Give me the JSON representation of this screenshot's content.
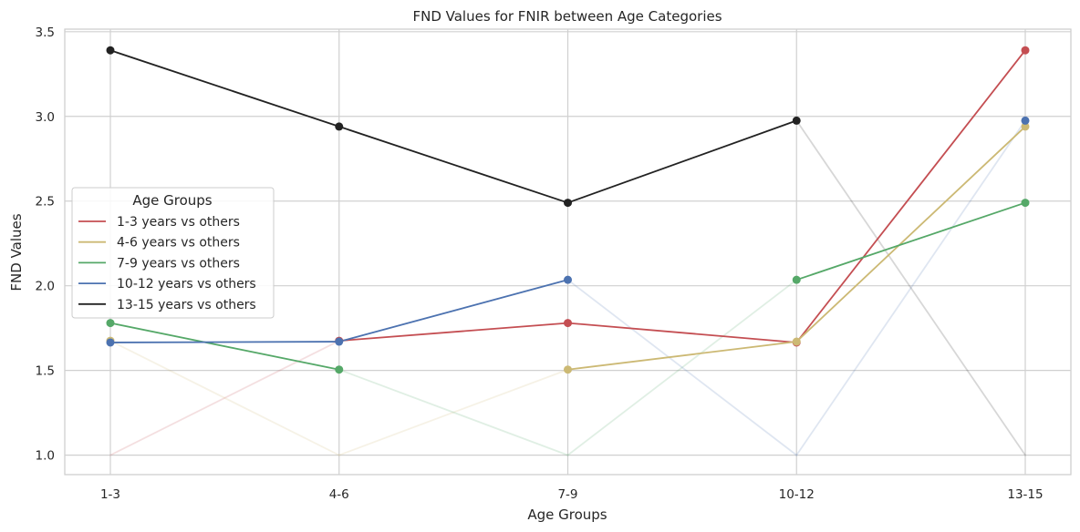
{
  "chart_data": {
    "type": "line",
    "title": "FND Values for FNIR between Age Categories",
    "xlabel": "Age Groups",
    "ylabel": "FND Values",
    "categories": [
      "1-3",
      "4-6",
      "7-9",
      "10-12",
      "13-15"
    ],
    "ylim": [
      0.885,
      3.515
    ],
    "yticks": [
      "1.0",
      "1.5",
      "2.0",
      "2.5",
      "3.0",
      "3.5"
    ],
    "grid": true,
    "legend": {
      "title": "Age Groups",
      "placement": "center-left"
    },
    "series": [
      {
        "name": "1-3 years vs others",
        "color": "#c44e52",
        "self_index": 0,
        "values": [
          1.0,
          1.675,
          1.78,
          1.665,
          3.39
        ]
      },
      {
        "name": "4-6 years vs others",
        "color": "#ccb974",
        "self_index": 1,
        "values": [
          1.675,
          1.0,
          1.505,
          1.67,
          2.94
        ]
      },
      {
        "name": "7-9 years vs others",
        "color": "#55a868",
        "self_index": 2,
        "values": [
          1.78,
          1.505,
          1.0,
          2.035,
          2.49
        ]
      },
      {
        "name": "10-12 years vs others",
        "color": "#4c72b0",
        "self_index": 3,
        "values": [
          1.665,
          1.67,
          2.035,
          1.0,
          2.975
        ]
      },
      {
        "name": "13-15 years vs others",
        "color": "#222222",
        "self_index": 4,
        "values": [
          3.39,
          2.94,
          2.49,
          2.975,
          1.0
        ]
      }
    ]
  }
}
